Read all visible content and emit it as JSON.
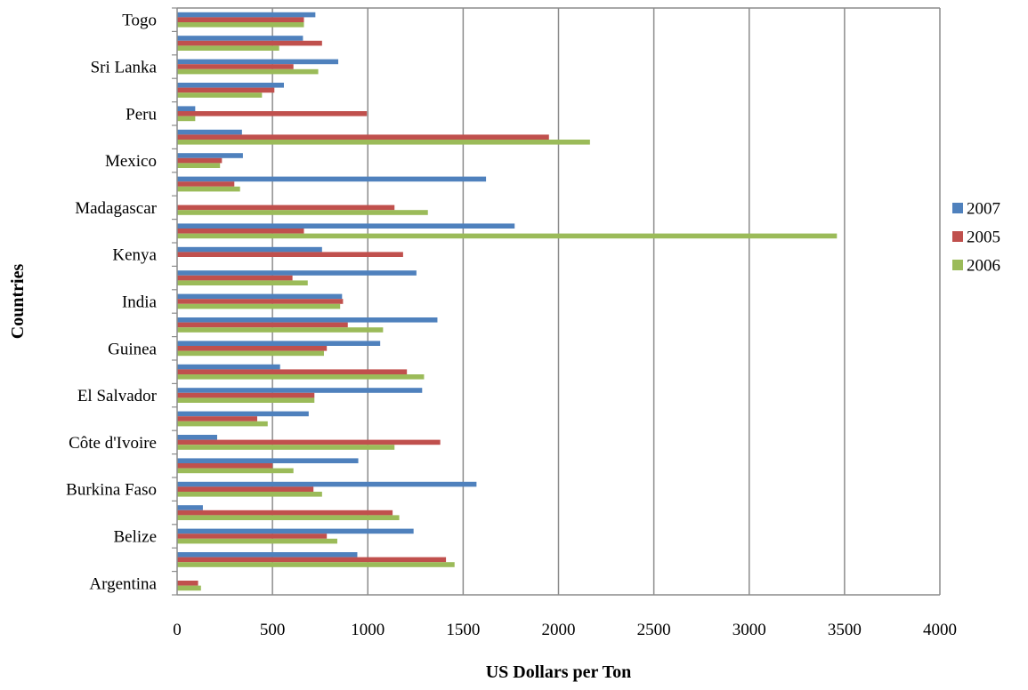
{
  "chart_data": {
    "type": "bar",
    "orientation": "horizontal",
    "title": "",
    "xlabel": "US Dollars per Ton",
    "ylabel": "Countries",
    "xlim": [
      0,
      4000
    ],
    "x_ticks": [
      "0",
      "500",
      "1000",
      "1500",
      "2000",
      "2500",
      "3000",
      "3500",
      "4000"
    ],
    "grid": "vertical gridlines",
    "legend_position": "right",
    "categories": [
      "Argentina",
      "",
      "Belize",
      "",
      "Burkina Faso",
      "",
      "Côte d'Ivoire",
      "",
      "El Salvador",
      "",
      "Guinea",
      "",
      "India",
      "",
      "Kenya",
      "",
      "Madagascar",
      "",
      "Mexico",
      "",
      "Peru",
      "",
      "Sri Lanka",
      "",
      "Togo"
    ],
    "series": [
      {
        "name": "2007",
        "color": "#4F81BD",
        "values": [
          0,
          945,
          1240,
          135,
          1570,
          950,
          210,
          690,
          1285,
          540,
          1065,
          1365,
          865,
          1255,
          760,
          1770,
          0,
          1620,
          345,
          340,
          95,
          560,
          845,
          660,
          725
        ]
      },
      {
        "name": "2005",
        "color": "#C0504D",
        "values": [
          110,
          1410,
          785,
          1130,
          715,
          500,
          1380,
          420,
          720,
          1205,
          785,
          895,
          870,
          605,
          1185,
          665,
          1140,
          300,
          235,
          1950,
          995,
          510,
          610,
          760,
          665
        ]
      },
      {
        "name": "2006",
        "color": "#9BBB59",
        "values": [
          125,
          1455,
          840,
          1165,
          760,
          610,
          1140,
          475,
          720,
          1295,
          770,
          1080,
          855,
          685,
          0,
          3460,
          1315,
          330,
          225,
          2165,
          95,
          445,
          740,
          535,
          665
        ]
      }
    ]
  }
}
